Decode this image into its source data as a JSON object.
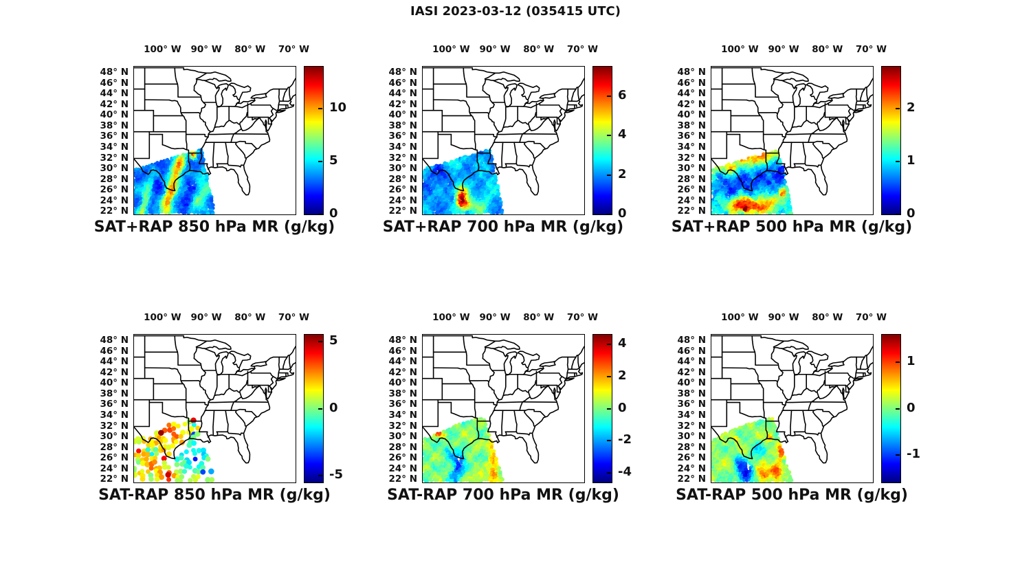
{
  "figure_title": "IASI 2023-03-12 (035415 UTC)",
  "colors": {
    "background": "#ffffff",
    "map_line": "#000000",
    "text": "#111111",
    "jet_stops": [
      "#000080",
      "#0000ff",
      "#00ffff",
      "#ffff00",
      "#ff0000",
      "#800000"
    ]
  },
  "axes": {
    "lon_tick_labels": [
      "100° W",
      "90° W",
      "80° W",
      "70° W"
    ],
    "lon_tick_values": [
      -100,
      -90,
      -80,
      -70
    ],
    "lat_tick_labels": [
      "48° N",
      "46° N",
      "44° N",
      "42° N",
      "40° N",
      "38° N",
      "36° N",
      "34° N",
      "32° N",
      "30° N",
      "28° N",
      "26° N",
      "24° N",
      "22° N"
    ],
    "lat_tick_values": [
      48,
      46,
      44,
      42,
      40,
      38,
      36,
      34,
      32,
      30,
      28,
      26,
      24,
      22
    ],
    "lon_range": [
      -106.5,
      -69.6
    ],
    "lat_range": [
      21.5,
      49.2
    ]
  },
  "chart_data": {
    "type": "map-scatter",
    "region": "Central and Eastern United States with state boundaries",
    "map_extent": {
      "lon": [
        -106.5,
        -69.6
      ],
      "lat": [
        21.5,
        49.2
      ]
    },
    "swath_description": "IASI overpass swath covering Texas, the western Gulf of Mexico and Louisiana, roughly 106.5W-88W and 21.6N-33.7N",
    "panels": [
      {
        "id": "sat-plus-rap-850",
        "title": "SAT+RAP 850 hPa MR (g/kg)",
        "cmin": 0,
        "cmax": 14,
        "colorbar_ticks": [
          0,
          5,
          10
        ],
        "mode": "dense",
        "base": 3.6,
        "noise": 1.0,
        "swath": [
          [
            -106.45,
            21.6
          ],
          [
            -106.45,
            30.0
          ],
          [
            -91.1,
            33.7
          ],
          [
            -88.0,
            21.6
          ]
        ],
        "features": [
          {
            "lon": -104.0,
            "lat": 23.5,
            "slon": 0.75,
            "slat": 3.5,
            "amp": 4.2,
            "k": 0.33
          },
          {
            "lon": -98.3,
            "lat": 25.0,
            "slon": 0.95,
            "slat": 5.5,
            "amp": 6.3,
            "k": 0.33
          },
          {
            "lon": -96.0,
            "lat": 30.5,
            "slon": 0.8,
            "slat": 1.6,
            "amp": 3.2,
            "k": 0.33
          },
          {
            "lon": -91.8,
            "lat": 24.5,
            "slon": 1.1,
            "slat": 4.0,
            "amp": 2.2,
            "k": 0.3
          },
          {
            "lon": -93.9,
            "lat": 24.0,
            "slon": 0.9,
            "slat": 3.5,
            "amp": -1.6,
            "k": 0.3
          },
          {
            "lon": -101.3,
            "lat": 27.0,
            "slon": 1.3,
            "slat": 3.5,
            "amp": -1.2,
            "k": 0.33
          },
          {
            "lon": -92.85,
            "lat": 32.6,
            "slon": 0.5,
            "slat": 0.6,
            "amp": 8.0
          },
          {
            "lon": -89.8,
            "lat": 26.0,
            "slon": 0.8,
            "slat": 2.0,
            "amp": 1.5,
            "k": 0.3
          }
        ],
        "holes": []
      },
      {
        "id": "sat-plus-rap-700",
        "title": "SAT+RAP 700 hPa MR (g/kg)",
        "cmin": 0,
        "cmax": 7.5,
        "colorbar_ticks": [
          0,
          2,
          4,
          6
        ],
        "mode": "dense",
        "base": 2.1,
        "noise": 0.55,
        "swath": [
          [
            -106.45,
            21.6
          ],
          [
            -106.45,
            30.0
          ],
          [
            -91.1,
            33.7
          ],
          [
            -88.0,
            21.6
          ]
        ],
        "features": [
          {
            "lon": -97.5,
            "lat": 24.3,
            "slon": 0.85,
            "slat": 1.2,
            "amp": 4.6
          },
          {
            "lon": -96.2,
            "lat": 23.3,
            "slon": 1.2,
            "slat": 0.9,
            "amp": 2.2
          },
          {
            "lon": -98.0,
            "lat": 26.2,
            "slon": 1.3,
            "slat": 0.9,
            "amp": 1.4
          },
          {
            "lon": -102.3,
            "lat": 29.0,
            "slon": 2.2,
            "slat": 2.0,
            "amp": -0.55
          },
          {
            "lon": -92.0,
            "lat": 25.0,
            "slon": 1.2,
            "slat": 2.5,
            "amp": 0.8,
            "k": 0.3
          },
          {
            "lon": -99.5,
            "lat": 31.3,
            "slon": 2.5,
            "slat": 1.0,
            "amp": 0.7
          },
          {
            "lon": -94.0,
            "lat": 22.5,
            "slon": 1.5,
            "slat": 0.8,
            "amp": 1.0
          }
        ],
        "holes": []
      },
      {
        "id": "sat-plus-rap-500",
        "title": "SAT+RAP 500 hPa MR (g/kg)",
        "cmin": 0,
        "cmax": 2.8,
        "colorbar_ticks": [
          0,
          1,
          2
        ],
        "mode": "dense",
        "base": 1.1,
        "noise": 0.28,
        "swath": [
          [
            -106.45,
            21.6
          ],
          [
            -106.45,
            30.0
          ],
          [
            -91.1,
            33.7
          ],
          [
            -88.0,
            21.6
          ]
        ],
        "features": [
          {
            "lon": -102.5,
            "lat": 30.2,
            "slon": 2.2,
            "slat": 0.9,
            "amp": 0.8
          },
          {
            "lon": -96.5,
            "lat": 31.8,
            "slon": 2.2,
            "slat": 0.9,
            "amp": 0.85
          },
          {
            "lon": -93.0,
            "lat": 32.8,
            "slon": 1.5,
            "slat": 0.8,
            "amp": 0.8
          },
          {
            "lon": -99.0,
            "lat": 32.3,
            "slon": 0.8,
            "slat": 0.6,
            "amp": 1.3
          },
          {
            "lon": -102.5,
            "lat": 26.5,
            "slon": 2.5,
            "slat": 2.0,
            "amp": -0.5
          },
          {
            "lon": -97.0,
            "lat": 27.8,
            "slon": 2.5,
            "slat": 1.8,
            "amp": -0.55
          },
          {
            "lon": -91.8,
            "lat": 28.8,
            "slon": 1.5,
            "slat": 2.0,
            "amp": -0.65
          },
          {
            "lon": -100.8,
            "lat": 23.2,
            "slon": 1.4,
            "slat": 1.0,
            "amp": 1.25
          },
          {
            "lon": -97.8,
            "lat": 23.6,
            "slon": 1.2,
            "slat": 0.9,
            "amp": 1.15
          },
          {
            "lon": -95.0,
            "lat": 22.6,
            "slon": 1.4,
            "slat": 0.8,
            "amp": 1.2
          },
          {
            "lon": -92.6,
            "lat": 24.0,
            "slon": 1.0,
            "slat": 0.8,
            "amp": 1.0
          },
          {
            "lon": -98.6,
            "lat": 22.4,
            "slon": 0.5,
            "slat": 0.4,
            "amp": 1.6
          },
          {
            "lon": -90.0,
            "lat": 25.5,
            "slon": 0.7,
            "slat": 0.7,
            "amp": 0.9
          }
        ],
        "holes": []
      },
      {
        "id": "sat-minus-rap-850",
        "title": "SAT-RAP 850 hPa MR (g/kg)",
        "cmin": -5.5,
        "cmax": 5.5,
        "colorbar_ticks": [
          -5,
          0,
          5
        ],
        "mode": "sparse",
        "base": 0.9,
        "noise": 1.1,
        "swath": [
          [
            -106.45,
            21.6
          ],
          [
            -106.45,
            29.5
          ],
          [
            -99.0,
            32.3
          ],
          [
            -92.5,
            33.6
          ],
          [
            -88.0,
            21.6
          ]
        ],
        "features": [
          {
            "lon": -97.8,
            "lat": 30.5,
            "slon": 2.0,
            "slat": 1.6,
            "amp": 2.4
          },
          {
            "lon": -104.8,
            "lat": 28.0,
            "slon": 1.5,
            "slat": 1.5,
            "amp": 1.6
          },
          {
            "lon": -98.6,
            "lat": 22.8,
            "slon": 1.6,
            "slat": 0.9,
            "amp": 2.6
          },
          {
            "lon": -93.8,
            "lat": 25.8,
            "slon": 2.3,
            "slat": 2.2,
            "amp": -2.8
          },
          {
            "lon": -91.0,
            "lat": 27.8,
            "slon": 1.2,
            "slat": 1.6,
            "amp": -2.0
          },
          {
            "lon": -90.4,
            "lat": 23.5,
            "slon": 0.45,
            "slat": 0.45,
            "amp": -5.0
          },
          {
            "lon": -102.0,
            "lat": 24.5,
            "slon": 1.5,
            "slat": 1.5,
            "amp": 1.2
          }
        ],
        "holes": [
          {
            "lon": -97.3,
            "lat": 27.3,
            "r": 0.8
          },
          {
            "lon": -100.6,
            "lat": 26.2,
            "r": 0.7
          }
        ]
      },
      {
        "id": "sat-minus-rap-700",
        "title": "SAT-RAP 700 hPa MR (g/kg)",
        "cmin": -4.6,
        "cmax": 4.6,
        "colorbar_ticks": [
          -4,
          -2,
          0,
          2,
          4
        ],
        "mode": "dense",
        "base": -0.05,
        "noise": 0.75,
        "swath": [
          [
            -106.45,
            21.6
          ],
          [
            -106.45,
            29.5
          ],
          [
            -99.0,
            32.3
          ],
          [
            -92.5,
            33.6
          ],
          [
            -88.0,
            21.6
          ]
        ],
        "features": [
          {
            "lon": -98.3,
            "lat": 24.5,
            "slon": 1.0,
            "slat": 2.0,
            "amp": -3.0,
            "k": 0.25
          },
          {
            "lon": -100.4,
            "lat": 27.2,
            "slon": 0.9,
            "slat": 1.3,
            "amp": -1.2
          },
          {
            "lon": -90.2,
            "lat": 24.0,
            "slon": 0.8,
            "slat": 1.8,
            "amp": 2.4
          },
          {
            "lon": -90.6,
            "lat": 28.4,
            "slon": 0.7,
            "slat": 0.9,
            "amp": 2.0
          },
          {
            "lon": -102.9,
            "lat": 30.7,
            "slon": 0.55,
            "slat": 0.45,
            "amp": 2.6
          },
          {
            "lon": -101.4,
            "lat": 30.2,
            "slon": 0.4,
            "slat": 0.35,
            "amp": 2.2
          },
          {
            "lon": -93.4,
            "lat": 22.4,
            "slon": 1.4,
            "slat": 0.7,
            "amp": 1.1
          },
          {
            "lon": -95.8,
            "lat": 29.0,
            "slon": 1.6,
            "slat": 1.2,
            "amp": 0.6
          }
        ],
        "holes": [
          {
            "lon": -98.2,
            "lat": 26.0,
            "r": 0.55
          }
        ]
      },
      {
        "id": "sat-minus-rap-500",
        "title": "SAT-RAP 500 hPa MR (g/kg)",
        "cmin": -1.6,
        "cmax": 1.6,
        "colorbar_ticks": [
          -1,
          0,
          1
        ],
        "mode": "dense",
        "base": 0.05,
        "noise": 0.26,
        "swath": [
          [
            -106.45,
            21.6
          ],
          [
            -106.45,
            29.5
          ],
          [
            -99.0,
            32.3
          ],
          [
            -92.5,
            33.6
          ],
          [
            -88.0,
            21.6
          ]
        ],
        "features": [
          {
            "lon": -98.6,
            "lat": 23.0,
            "slon": 1.2,
            "slat": 1.4,
            "amp": -1.45
          },
          {
            "lon": -100.2,
            "lat": 25.3,
            "slon": 0.7,
            "slat": 0.9,
            "amp": -0.75
          },
          {
            "lon": -94.6,
            "lat": 23.0,
            "slon": 1.1,
            "slat": 0.9,
            "amp": 1.0
          },
          {
            "lon": -91.6,
            "lat": 23.8,
            "slon": 0.8,
            "slat": 1.0,
            "amp": 1.05
          },
          {
            "lon": -90.5,
            "lat": 27.0,
            "slon": 0.5,
            "slat": 1.3,
            "amp": 0.8
          },
          {
            "lon": -100.7,
            "lat": 29.6,
            "slon": 0.3,
            "slat": 0.3,
            "amp": 1.6
          },
          {
            "lon": -96.0,
            "lat": 27.5,
            "slon": 1.2,
            "slat": 1.2,
            "amp": -0.45
          },
          {
            "lon": -93.0,
            "lat": 29.7,
            "slon": 0.5,
            "slat": 0.5,
            "amp": 0.65
          }
        ],
        "holes": [
          {
            "lon": -98.0,
            "lat": 24.6,
            "r": 0.55
          }
        ]
      }
    ]
  }
}
